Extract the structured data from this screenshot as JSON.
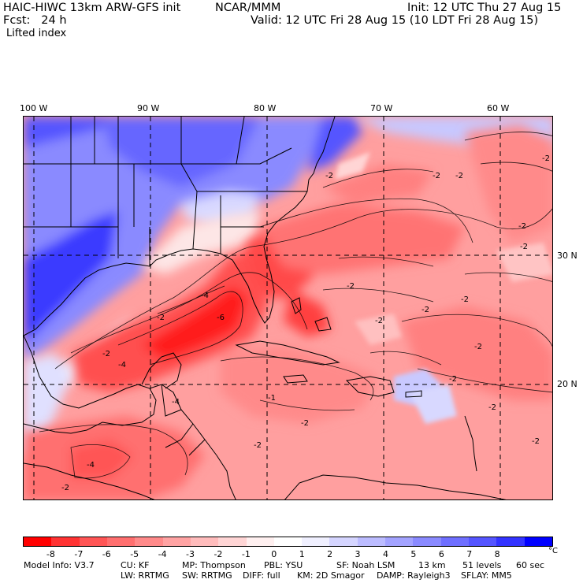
{
  "header": {
    "model": "HAIC-HIWC 13km ARW-GFS init",
    "org": "NCAR/MMM",
    "fcst": "Fcst:   24 h",
    "init": "Init: 12 UTC Thu 27 Aug 15",
    "valid": "Valid: 12 UTC Fri 28 Aug 15 (10 LDT Fri 28 Aug 15)",
    "field": "Lifted index"
  },
  "map": {
    "lon_labels": [
      "100 W",
      "90 W",
      "80 W",
      "70 W",
      "60 W"
    ],
    "lat_labels": [
      "30 N",
      "20 N"
    ],
    "contour_labels": [
      "-2",
      "-2",
      "-2",
      "-2",
      "-2",
      "-2",
      "-1",
      "-2",
      "-2",
      "-2",
      "-2",
      "-2",
      "-2",
      "-4",
      "-4",
      "-6",
      "-2",
      "-2",
      "-2",
      "-2",
      "-4",
      "-2",
      "-2",
      "-2",
      "-4"
    ]
  },
  "colorbar": {
    "colors": [
      "#ff0000",
      "#ff3333",
      "#ff5555",
      "#ff6f6f",
      "#ff8a8a",
      "#ffa3a3",
      "#ffbcbc",
      "#ffd5d5",
      "#fff0f0",
      "#ffffff",
      "#f0f0ff",
      "#d5d5ff",
      "#bcbcff",
      "#a3a3ff",
      "#8a8aff",
      "#6f6fff",
      "#5555ff",
      "#3333ff",
      "#0000ff"
    ],
    "labels": [
      "-8",
      "-7",
      "-6",
      "-5",
      "-4",
      "-3",
      "-2",
      "-1",
      "0",
      "1",
      "2",
      "3",
      "4",
      "5",
      "6",
      "7",
      "8"
    ],
    "unit": "°C"
  },
  "footer": {
    "line1": [
      "Model Info: V3.7",
      "CU: KF",
      "MP: Thompson",
      "PBL: YSU",
      "SF: Noah LSM",
      "13 km",
      "51 levels",
      "60 sec"
    ],
    "line2": [
      "LW: RRTMG",
      "SW: RRTMG",
      "DIFF: full",
      "KM: 2D Smagor",
      "DAMP: Rayleigh3",
      "SFLAY: MM5"
    ]
  }
}
